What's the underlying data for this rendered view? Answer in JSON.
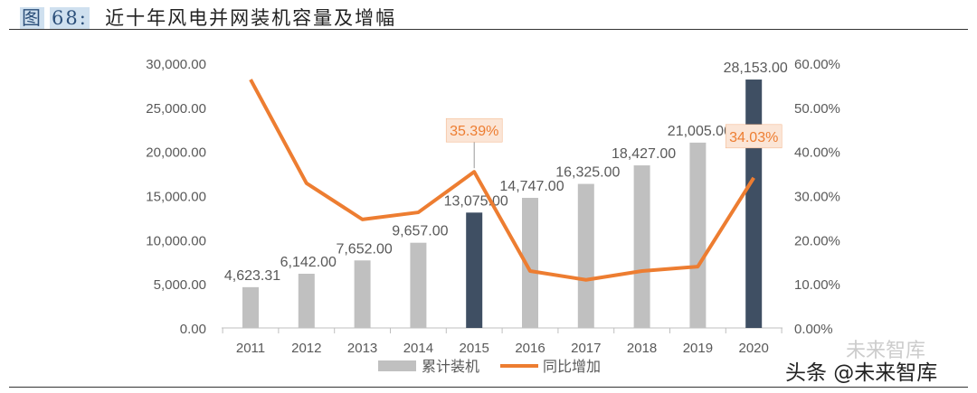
{
  "title": {
    "figure_label": "图",
    "figure_number": "68:",
    "text": "近十年风电并网装机容量及增幅"
  },
  "watermark": {
    "faint": "未来智库",
    "main": "头条 @未来智库"
  },
  "chart_data": {
    "type": "bar+line",
    "categories": [
      "2011",
      "2012",
      "2013",
      "2014",
      "2015",
      "2016",
      "2017",
      "2018",
      "2019",
      "2020"
    ],
    "series": [
      {
        "name": "累计装机",
        "type": "bar",
        "axis": "left",
        "values": [
          4623.31,
          6142.0,
          7652.0,
          9657.0,
          13075.0,
          14747.0,
          16325.0,
          18427.0,
          21005.0,
          28153.0
        ],
        "labels": [
          "4,623.31",
          "6,142.00",
          "7,652.00",
          "9,657.00",
          "13,075.00",
          "14,747.00",
          "16,325.00",
          "18,427.00",
          "21,005.00",
          "28,153.00"
        ],
        "color": "#c0c0c0",
        "highlight_color": "#3f4f63",
        "highlighted": [
          "2015",
          "2020"
        ]
      },
      {
        "name": "同比增加",
        "type": "line",
        "axis": "right",
        "values": [
          56.3,
          32.8,
          24.6,
          26.2,
          35.39,
          12.9,
          10.9,
          12.9,
          13.9,
          34.03
        ],
        "color": "#ed7d31",
        "data_labels": [
          {
            "category": "2015",
            "text": "35.39%"
          },
          {
            "category": "2020",
            "text": "34.03%"
          }
        ]
      }
    ],
    "left_axis": {
      "ylim": [
        0,
        30000
      ],
      "ticks": [
        "0.00",
        "5,000.00",
        "10,000.00",
        "15,000.00",
        "20,000.00",
        "25,000.00",
        "30,000.00"
      ]
    },
    "right_axis": {
      "ylim": [
        0,
        60
      ],
      "ticks": [
        "0.00%",
        "10.00%",
        "20.00%",
        "30.00%",
        "40.00%",
        "50.00%",
        "60.00%"
      ]
    },
    "grid": false,
    "legend": "bottom"
  }
}
